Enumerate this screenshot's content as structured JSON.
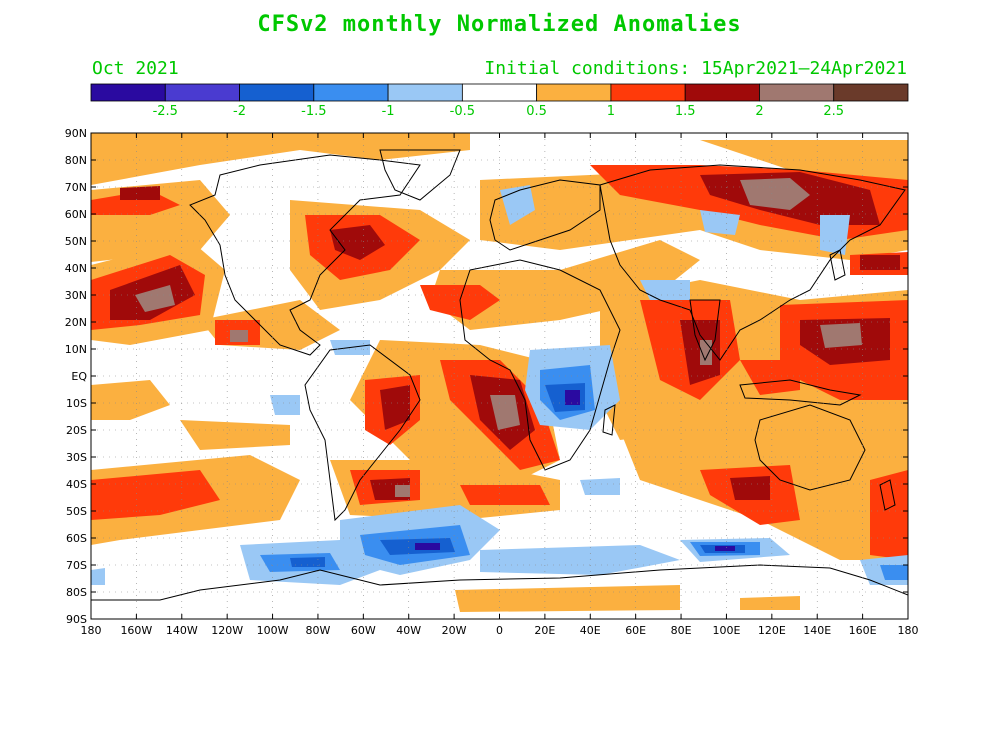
{
  "header": {
    "title": "CFSv2 monthly Normalized Anomalies",
    "month": "Oct 2021",
    "initial_conditions": "Initial conditions: 15Apr2021–24Apr2021"
  },
  "colorbar": {
    "colors": [
      "#2a0aa0",
      "#4a3bd0",
      "#1560d0",
      "#3a8ef0",
      "#9ac8f5",
      "#ffffff",
      "#fbb040",
      "#ff3a0a",
      "#a00a0a",
      "#a07870",
      "#6a3a2a"
    ],
    "labels": [
      "-2.5",
      "-2",
      "-1.5",
      "-1",
      "-0.5",
      "0.5",
      "1",
      "1.5",
      "2",
      "2.5"
    ]
  },
  "map": {
    "lat_labels": [
      "90N",
      "80N",
      "70N",
      "60N",
      "50N",
      "40N",
      "30N",
      "20N",
      "10N",
      "EQ",
      "10S",
      "20S",
      "30S",
      "40S",
      "50S",
      "60S",
      "70S",
      "80S",
      "90S"
    ],
    "lon_labels": [
      "180",
      "160W",
      "140W",
      "120W",
      "100W",
      "80W",
      "60W",
      "40W",
      "20W",
      "0",
      "20E",
      "40E",
      "60E",
      "80E",
      "100E",
      "120E",
      "140E",
      "160E",
      "180"
    ]
  }
}
